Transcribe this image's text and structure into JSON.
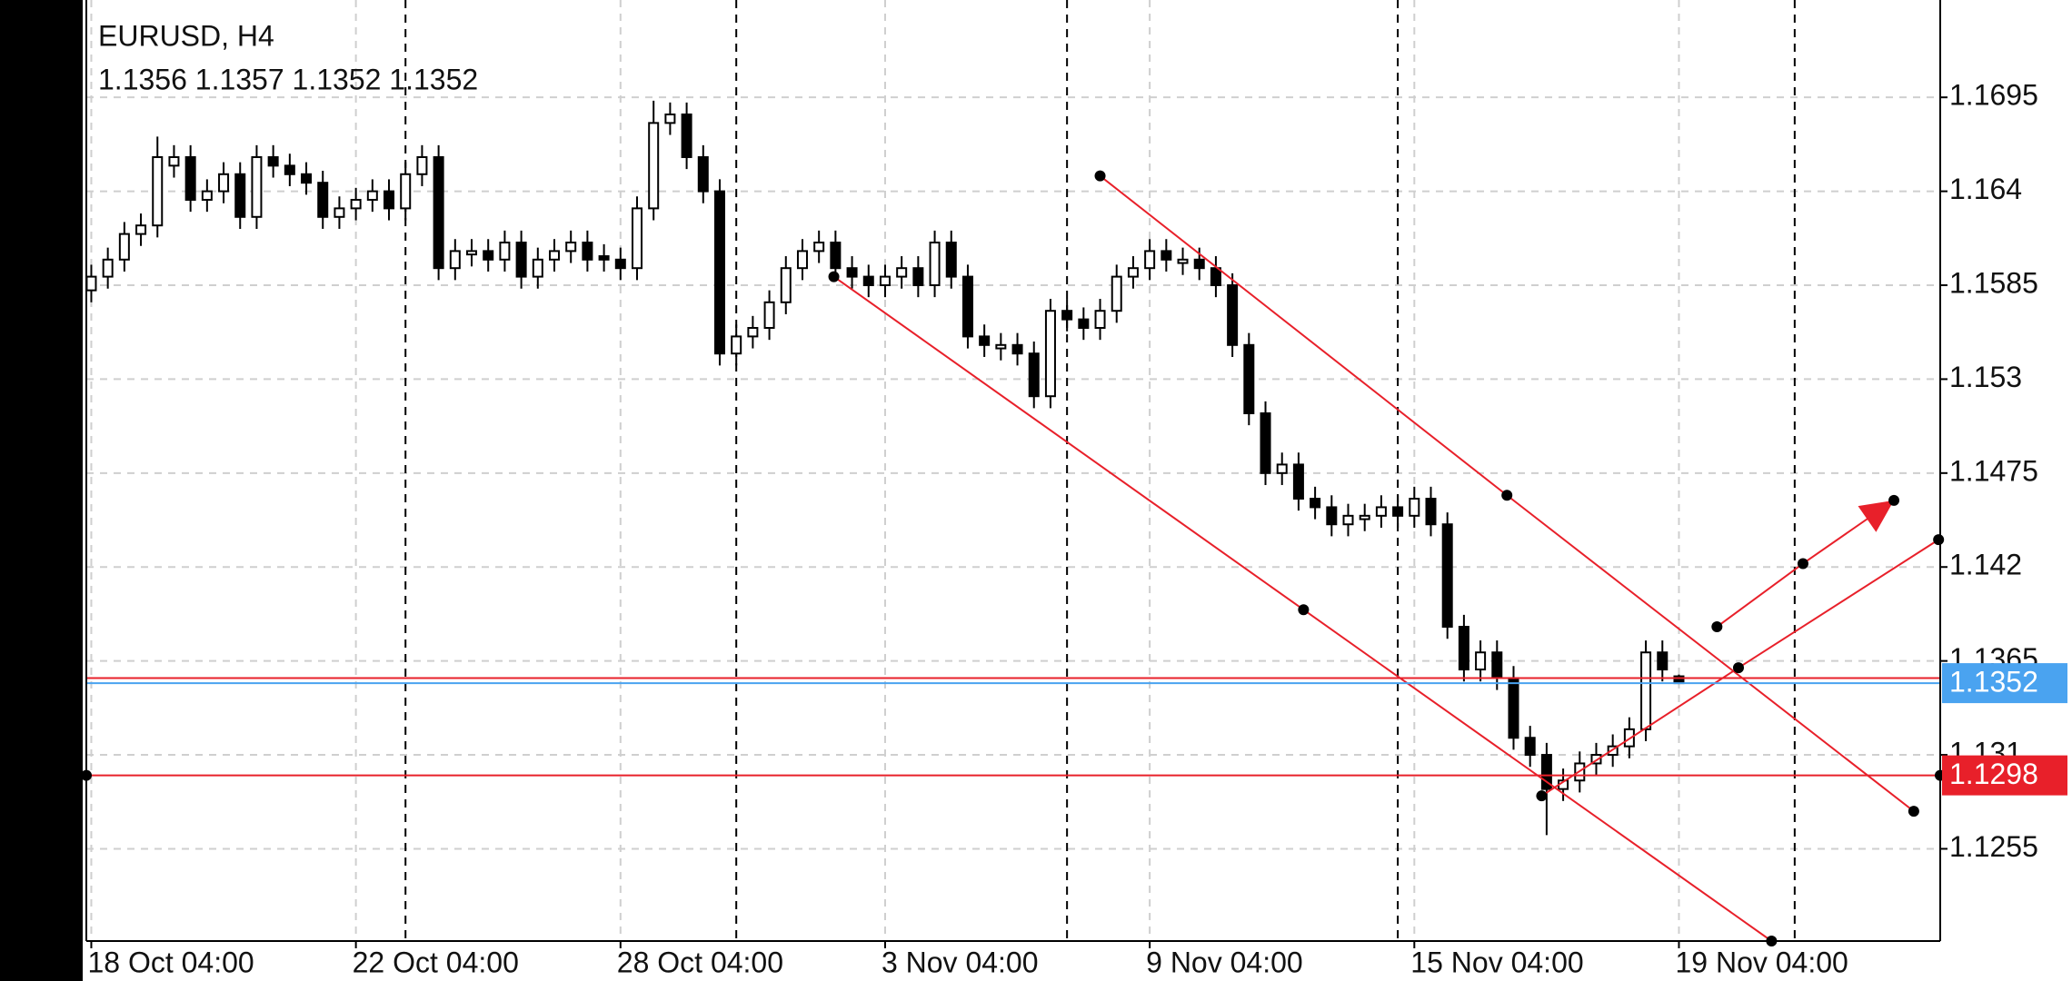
{
  "chart_data": {
    "type": "candlestick",
    "title": "EURUSD, H4",
    "subtitle": "1.1356 1.1357 1.1352 1.1352",
    "up_color": "#ffffff",
    "down_color": "#000000",
    "candles": [
      [
        1.1582,
        1.1597,
        1.1575,
        1.159
      ],
      [
        1.159,
        1.1607,
        1.1583,
        1.16
      ],
      [
        1.16,
        1.1622,
        1.1593,
        1.1615
      ],
      [
        1.1615,
        1.1627,
        1.1608,
        1.162
      ],
      [
        1.162,
        1.1672,
        1.1613,
        1.166
      ],
      [
        1.1655,
        1.1667,
        1.1648,
        1.166
      ],
      [
        1.166,
        1.1667,
        1.1628,
        1.1635
      ],
      [
        1.1635,
        1.1647,
        1.1628,
        1.164
      ],
      [
        1.164,
        1.1657,
        1.1633,
        1.165
      ],
      [
        1.165,
        1.1657,
        1.1618,
        1.1625
      ],
      [
        1.1625,
        1.1667,
        1.1618,
        1.166
      ],
      [
        1.166,
        1.1667,
        1.1648,
        1.1655
      ],
      [
        1.1655,
        1.1662,
        1.1643,
        1.165
      ],
      [
        1.165,
        1.1657,
        1.1638,
        1.1645
      ],
      [
        1.1645,
        1.1652,
        1.1618,
        1.1625
      ],
      [
        1.1625,
        1.1637,
        1.1618,
        1.163
      ],
      [
        1.163,
        1.1642,
        1.1623,
        1.1635
      ],
      [
        1.1635,
        1.1647,
        1.1628,
        1.164
      ],
      [
        1.164,
        1.1647,
        1.1623,
        1.163
      ],
      [
        1.163,
        1.1657,
        1.1623,
        1.165
      ],
      [
        1.165,
        1.1667,
        1.1643,
        1.166
      ],
      [
        1.166,
        1.1667,
        1.1588,
        1.1595
      ],
      [
        1.1595,
        1.1612,
        1.1588,
        1.1605
      ],
      [
        1.1603,
        1.1612,
        1.1596,
        1.1605
      ],
      [
        1.1605,
        1.1612,
        1.1593,
        1.16
      ],
      [
        1.16,
        1.1617,
        1.1593,
        1.161
      ],
      [
        1.161,
        1.1617,
        1.1583,
        1.159
      ],
      [
        1.159,
        1.1607,
        1.1583,
        1.16
      ],
      [
        1.16,
        1.1612,
        1.1593,
        1.1605
      ],
      [
        1.1605,
        1.1617,
        1.1598,
        1.161
      ],
      [
        1.161,
        1.1617,
        1.1593,
        1.16
      ],
      [
        1.1602,
        1.1609,
        1.1593,
        1.16
      ],
      [
        1.16,
        1.1607,
        1.1588,
        1.1595
      ],
      [
        1.1595,
        1.1637,
        1.1588,
        1.163
      ],
      [
        1.163,
        1.1693,
        1.1623,
        1.168
      ],
      [
        1.168,
        1.1692,
        1.1673,
        1.1685
      ],
      [
        1.1685,
        1.1692,
        1.1653,
        1.166
      ],
      [
        1.166,
        1.1667,
        1.1633,
        1.164
      ],
      [
        1.164,
        1.1647,
        1.1538,
        1.1545
      ],
      [
        1.1545,
        1.1562,
        1.1538,
        1.1555
      ],
      [
        1.1555,
        1.1567,
        1.1548,
        1.156
      ],
      [
        1.156,
        1.1582,
        1.1553,
        1.1575
      ],
      [
        1.1575,
        1.1602,
        1.1568,
        1.1595
      ],
      [
        1.1595,
        1.1612,
        1.1588,
        1.1605
      ],
      [
        1.1605,
        1.1617,
        1.1598,
        1.161
      ],
      [
        1.161,
        1.1617,
        1.1588,
        1.1595
      ],
      [
        1.1595,
        1.1602,
        1.1583,
        1.159
      ],
      [
        1.159,
        1.1597,
        1.1578,
        1.1585
      ],
      [
        1.1585,
        1.1597,
        1.1578,
        1.159
      ],
      [
        1.159,
        1.1602,
        1.1583,
        1.1595
      ],
      [
        1.1595,
        1.1602,
        1.1578,
        1.1585
      ],
      [
        1.1585,
        1.1617,
        1.1578,
        1.161
      ],
      [
        1.161,
        1.1617,
        1.1583,
        1.159
      ],
      [
        1.159,
        1.1597,
        1.1548,
        1.1555
      ],
      [
        1.1555,
        1.1562,
        1.1543,
        1.155
      ],
      [
        1.1548,
        1.1557,
        1.1541,
        1.155
      ],
      [
        1.155,
        1.1557,
        1.1538,
        1.1545
      ],
      [
        1.1545,
        1.1552,
        1.1513,
        1.152
      ],
      [
        1.152,
        1.1577,
        1.1513,
        1.157
      ],
      [
        1.157,
        1.1577,
        1.1558,
        1.1565
      ],
      [
        1.1565,
        1.1572,
        1.1553,
        1.156
      ],
      [
        1.156,
        1.1577,
        1.1553,
        1.157
      ],
      [
        1.157,
        1.1597,
        1.1563,
        1.159
      ],
      [
        1.159,
        1.1602,
        1.1583,
        1.1595
      ],
      [
        1.1595,
        1.1612,
        1.1588,
        1.1605
      ],
      [
        1.1605,
        1.1612,
        1.1593,
        1.16
      ],
      [
        1.1598,
        1.1607,
        1.1591,
        1.16
      ],
      [
        1.16,
        1.1607,
        1.1588,
        1.1595
      ],
      [
        1.1595,
        1.1602,
        1.1578,
        1.1585
      ],
      [
        1.1585,
        1.1592,
        1.1543,
        1.155
      ],
      [
        1.155,
        1.1557,
        1.1503,
        1.151
      ],
      [
        1.151,
        1.1517,
        1.1468,
        1.1475
      ],
      [
        1.1475,
        1.1487,
        1.1468,
        1.148
      ],
      [
        1.148,
        1.1487,
        1.1453,
        1.146
      ],
      [
        1.146,
        1.1467,
        1.1448,
        1.1455
      ],
      [
        1.1455,
        1.1462,
        1.1438,
        1.1445
      ],
      [
        1.1445,
        1.1457,
        1.1438,
        1.145
      ],
      [
        1.1448,
        1.1457,
        1.1441,
        1.145
      ],
      [
        1.145,
        1.1462,
        1.1443,
        1.1455
      ],
      [
        1.1455,
        1.1462,
        1.1443,
        1.145
      ],
      [
        1.145,
        1.1467,
        1.1443,
        1.146
      ],
      [
        1.146,
        1.1467,
        1.1438,
        1.1445
      ],
      [
        1.1445,
        1.1452,
        1.1378,
        1.1385
      ],
      [
        1.1385,
        1.1392,
        1.1353,
        1.136
      ],
      [
        1.136,
        1.1377,
        1.1353,
        1.137
      ],
      [
        1.137,
        1.1377,
        1.1348,
        1.1355
      ],
      [
        1.1355,
        1.1362,
        1.1313,
        1.132
      ],
      [
        1.132,
        1.1327,
        1.1303,
        1.131
      ],
      [
        1.131,
        1.1317,
        1.1263,
        1.129
      ],
      [
        1.129,
        1.1302,
        1.1283,
        1.1295
      ],
      [
        1.1295,
        1.1312,
        1.1288,
        1.1305
      ],
      [
        1.1305,
        1.1317,
        1.1298,
        1.131
      ],
      [
        1.131,
        1.1322,
        1.1303,
        1.1315
      ],
      [
        1.1315,
        1.1332,
        1.1308,
        1.1325
      ],
      [
        1.1325,
        1.1377,
        1.1318,
        1.137
      ],
      [
        1.137,
        1.1377,
        1.1353,
        1.136
      ],
      [
        1.1356,
        1.1357,
        1.1352,
        1.1352
      ]
    ],
    "xlim": [
      -0.3,
      111.8
    ],
    "xticks": [
      {
        "value": 0,
        "label": "18 Oct 04:00"
      },
      {
        "value": 16,
        "label": "22 Oct 04:00"
      },
      {
        "value": 32,
        "label": "28 Oct 04:00"
      },
      {
        "value": 48,
        "label": "3 Nov 04:00"
      },
      {
        "value": 64,
        "label": "9 Nov 04:00"
      },
      {
        "value": 80,
        "label": "15 Nov 04:00"
      },
      {
        "value": 96,
        "label": "19 Nov 04:00"
      }
    ],
    "separators": [
      19,
      39,
      59,
      79,
      103
    ],
    "ylim": [
      1.1201,
      1.1752
    ],
    "yticks": [
      1.1695,
      1.164,
      1.1585,
      1.153,
      1.1475,
      1.142,
      1.1365,
      1.131,
      1.1255
    ],
    "grid": true,
    "hlines": [
      {
        "value": 1.1355,
        "color": "#e8202a"
      },
      {
        "value": 1.1352,
        "color": "#4aa3f0",
        "label": "1.1352"
      },
      {
        "value": 1.1298,
        "color": "#e8202a",
        "label": "1.1298",
        "dots": true
      }
    ],
    "trendlines": [
      {
        "color": "#e8202a",
        "x": [
          61,
          85.6,
          110.2
        ],
        "y": [
          1.1649,
          1.1462,
          1.1277
        ]
      },
      {
        "color": "#e8202a",
        "x": [
          44.9,
          73.3,
          101.6
        ],
        "y": [
          1.159,
          1.1395,
          1.1201
        ]
      },
      {
        "color": "#e8202a",
        "x": [
          87.7,
          99.6,
          111.7
        ],
        "y": [
          1.1286,
          1.1361,
          1.1436
        ]
      },
      {
        "color": "#e8202a",
        "x": [
          98.3,
          103.5,
          109
        ],
        "y": [
          1.1385,
          1.1422,
          1.1459
        ],
        "arrow": true
      }
    ]
  }
}
